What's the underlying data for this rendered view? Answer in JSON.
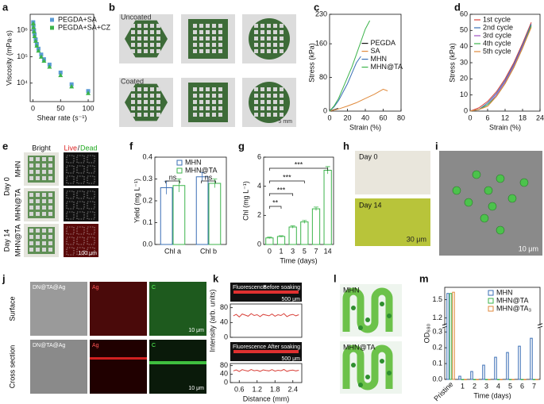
{
  "chart_data": [
    {
      "panel": "a",
      "type": "scatter",
      "xlabel": "Shear rate (s⁻¹)",
      "ylabel": "Viscosity (mPa·s)",
      "log_y": true,
      "xlim": [
        -5,
        110
      ],
      "xticks": [
        0,
        50,
        100
      ],
      "ylim": [
        2000,
        4000000
      ],
      "yticks": [
        {
          "value": 10000,
          "label": "10⁴"
        },
        {
          "value": 100000,
          "label": "10⁵"
        },
        {
          "value": 1000000,
          "label": "10⁶"
        }
      ],
      "legend": "upper right",
      "series": [
        {
          "name": "PEGDA+SA",
          "color": "#5b9bd5",
          "marker": "square",
          "x": [
            0.5,
            1,
            2,
            3,
            5,
            7,
            10,
            15,
            20,
            30,
            50,
            70,
            100
          ],
          "values": [
            2000000,
            1500000,
            1000000,
            700000,
            450000,
            300000,
            200000,
            120000,
            80000,
            50000,
            25000,
            9000,
            5000
          ]
        },
        {
          "name": "PEGDA+SA+CZ",
          "color": "#3cb44b",
          "marker": "triangle",
          "x": [
            0.5,
            1,
            2,
            3,
            5,
            7,
            10,
            15,
            20,
            30,
            50,
            70,
            100
          ],
          "values": [
            1800000,
            1300000,
            900000,
            600000,
            400000,
            260000,
            170000,
            100000,
            70000,
            42000,
            20000,
            7500,
            4200
          ]
        }
      ]
    },
    {
      "panel": "c",
      "type": "line",
      "xlabel": "Strain (%)",
      "ylabel": "Stress (kPa)",
      "xlim": [
        0,
        80
      ],
      "xticks": [
        0,
        20,
        40,
        60,
        80
      ],
      "ylim": [
        0,
        230
      ],
      "yticks": [
        0,
        80,
        160,
        230
      ],
      "legend": "center right",
      "series": [
        {
          "name": "PEGDA",
          "color": "#111111",
          "x": [
            0,
            3,
            6,
            9,
            10
          ],
          "values": [
            0,
            2,
            4,
            6,
            5
          ]
        },
        {
          "name": "SA",
          "color": "#e08a3c",
          "x": [
            0,
            10,
            20,
            30,
            40,
            50,
            60,
            65
          ],
          "values": [
            0,
            5,
            12,
            20,
            30,
            40,
            52,
            48
          ]
        },
        {
          "name": "MHN",
          "color": "#3a6fb5",
          "x": [
            0,
            5,
            10,
            15,
            20,
            25,
            30,
            35
          ],
          "values": [
            0,
            10,
            25,
            45,
            65,
            90,
            115,
            130
          ]
        },
        {
          "name": "MHN@TA",
          "color": "#3cb44b",
          "x": [
            0,
            5,
            10,
            15,
            20,
            25,
            30,
            35,
            40,
            45
          ],
          "values": [
            0,
            12,
            30,
            55,
            80,
            105,
            135,
            165,
            195,
            215
          ]
        }
      ]
    },
    {
      "panel": "d",
      "type": "line",
      "xlabel": "Strain (%)",
      "ylabel": "Stress (kPa)",
      "xlim": [
        0,
        24
      ],
      "xticks": [
        0,
        6,
        12,
        18,
        24
      ],
      "ylim": [
        0,
        60
      ],
      "yticks": [
        0,
        10,
        20,
        30,
        40,
        50,
        60
      ],
      "legend": "upper left",
      "series": [
        {
          "name": "1st cycle",
          "color": "#d9413a",
          "x": [
            0,
            3,
            6,
            9,
            12,
            15,
            18,
            21
          ],
          "values": [
            0,
            2,
            6,
            12,
            20,
            30,
            42,
            55
          ]
        },
        {
          "name": "2nd cycle",
          "color": "#3a6fb5",
          "x": [
            0,
            3,
            6,
            9,
            12,
            15,
            18,
            21
          ],
          "values": [
            0,
            1,
            5,
            11,
            19,
            29,
            41,
            54
          ]
        },
        {
          "name": "3rd cycle",
          "color": "#a050c0",
          "x": [
            0,
            3,
            6,
            9,
            12,
            15,
            18,
            21
          ],
          "values": [
            0,
            1,
            4,
            10,
            18,
            28,
            40,
            53
          ]
        },
        {
          "name": "4th cycle",
          "color": "#3cb44b",
          "x": [
            0,
            3,
            6,
            9,
            12,
            15,
            18,
            21
          ],
          "values": [
            0,
            1,
            4,
            9,
            17,
            27,
            39,
            53
          ]
        },
        {
          "name": "5th cycle",
          "color": "#e08a3c",
          "x": [
            0,
            3,
            6,
            9,
            12,
            15,
            18,
            21
          ],
          "values": [
            0,
            1,
            3,
            9,
            17,
            27,
            39,
            52
          ]
        }
      ]
    },
    {
      "panel": "f",
      "type": "bar",
      "ylabel": "Yield (mg L⁻¹)",
      "categories": [
        "Chl a",
        "Chl b"
      ],
      "ylim": [
        0,
        0.4
      ],
      "yticks": [
        {
          "value": 0,
          "label": "0.0"
        },
        0.1,
        0.2,
        0.3,
        0.4
      ],
      "legend": "upper center",
      "annotations": [
        "ns",
        "ns"
      ],
      "series": [
        {
          "name": "MHN",
          "color": "#3a6fb5",
          "values": [
            0.26,
            0.31
          ],
          "errors": [
            0.03,
            0.02
          ]
        },
        {
          "name": "MHN@TA",
          "color": "#3cb44b",
          "values": [
            0.27,
            0.28
          ],
          "errors": [
            0.03,
            0.02
          ]
        }
      ]
    },
    {
      "panel": "g",
      "type": "bar",
      "xlabel": "Time (days)",
      "ylabel": "Chl (mg L⁻¹)",
      "categories": [
        "0",
        "1",
        "3",
        "5",
        "7",
        "14"
      ],
      "ylim": [
        0,
        6
      ],
      "yticks": [
        0,
        2,
        4,
        6
      ],
      "annotations": [
        "**",
        "***",
        "***",
        "***"
      ],
      "series": [
        {
          "color": "#3cb44b",
          "values": [
            0.45,
            0.55,
            1.2,
            1.55,
            2.45,
            5.1
          ],
          "errors": [
            0.05,
            0.05,
            0.08,
            0.1,
            0.12,
            0.25
          ]
        }
      ]
    },
    {
      "panel": "k",
      "type": "line",
      "ylabel": "Intensity (arb. units)",
      "xlim": [
        0.3,
        2.7
      ],
      "ylim": [
        0,
        90
      ],
      "yticks": [
        0,
        40,
        80
      ],
      "series": [
        {
          "color": "#d9413a",
          "x": [
            0.4,
            0.5,
            0.6,
            0.7,
            0.8,
            0.9,
            1.0,
            1.1,
            1.2,
            1.3,
            1.4,
            1.5,
            1.6,
            1.7,
            1.8,
            1.9,
            2.0,
            2.1,
            2.2,
            2.3,
            2.4,
            2.5,
            2.6
          ],
          "values": [
            58,
            62,
            55,
            63,
            60,
            57,
            64,
            59,
            61,
            56,
            62,
            60,
            58,
            63,
            57,
            61,
            59,
            64,
            56,
            60,
            62,
            58,
            61
          ]
        }
      ]
    },
    {
      "type": "line",
      "xlabel": "Distance (mm)",
      "xlim": [
        0.3,
        2.7
      ],
      "xticks": [
        0.6,
        1.2,
        1.8,
        2.4
      ],
      "ylim": [
        0,
        90
      ],
      "yticks": [
        0,
        40,
        80
      ],
      "series": [
        {
          "color": "#d9413a",
          "x": [
            0.4,
            0.5,
            0.6,
            0.7,
            0.8,
            0.9,
            1.0,
            1.1,
            1.2,
            1.3,
            1.4,
            1.5,
            1.6,
            1.7,
            1.8,
            1.9,
            2.0,
            2.1,
            2.2,
            2.3,
            2.4,
            2.5,
            2.6
          ],
          "values": [
            55,
            60,
            52,
            61,
            57,
            54,
            62,
            56,
            58,
            53,
            60,
            57,
            55,
            61,
            54,
            58,
            56,
            62,
            53,
            57,
            59,
            55,
            58
          ]
        }
      ]
    },
    {
      "panel": "m",
      "type": "bar",
      "xlabel": "Time (days)",
      "ylabel": "OD₆₈₀",
      "categories": [
        "Pristine",
        "1",
        "2",
        "3",
        "4",
        "5",
        "6",
        "7"
      ],
      "ylim": [
        0,
        1.7
      ],
      "axis_break": [
        0.32,
        1.1
      ],
      "yticks": [
        {
          "value": 0,
          "label": "0.0"
        },
        0.1,
        0.2,
        0.3,
        1.2,
        1.5
      ],
      "legend": "upper right",
      "series": [
        {
          "name": "MHN",
          "color": "#3a6fb5",
          "values": [
            1.6,
            0.02,
            0.05,
            0.09,
            0.14,
            0.17,
            0.21,
            0.26
          ]
        },
        {
          "name": "MHN@TA",
          "color": "#3cb44b",
          "values": [
            1.6,
            0,
            0,
            0,
            0,
            0,
            0,
            0
          ]
        },
        {
          "name": "MHN@TA₃",
          "color": "#e08a3c",
          "values": [
            1.62,
            0,
            0,
            0,
            0,
            0,
            0,
            0
          ]
        }
      ]
    }
  ],
  "images": [
    {
      "panel": "b",
      "labels": [
        "Uncoated",
        "Coated",
        "5 mm"
      ]
    },
    {
      "panel": "e",
      "labels": [
        "Bright",
        "Live",
        "/",
        "Dead",
        "Day 0",
        "MHN",
        "MHN@TA",
        "Day 14",
        "MHN@TA",
        "100 μm"
      ]
    },
    {
      "panel": "h",
      "labels": [
        "Day 0",
        "Day 14",
        "30 μm"
      ]
    },
    {
      "panel": "i",
      "labels": [
        "10 μm"
      ]
    },
    {
      "panel": "j",
      "labels": [
        "DN@TA@Ag",
        "Ag",
        "C",
        "10 μm",
        "DN@TA@Ag",
        "Ag",
        "C",
        "10 μm",
        "Surface",
        "Cross section"
      ]
    },
    {
      "labels": [
        "Fluorescence",
        "Before soaking",
        "500 μm",
        "Fluorescence",
        "After soaking",
        "500 μm"
      ]
    },
    {
      "panel": "l",
      "labels": [
        "MHN",
        "MHN@TA"
      ]
    }
  ]
}
